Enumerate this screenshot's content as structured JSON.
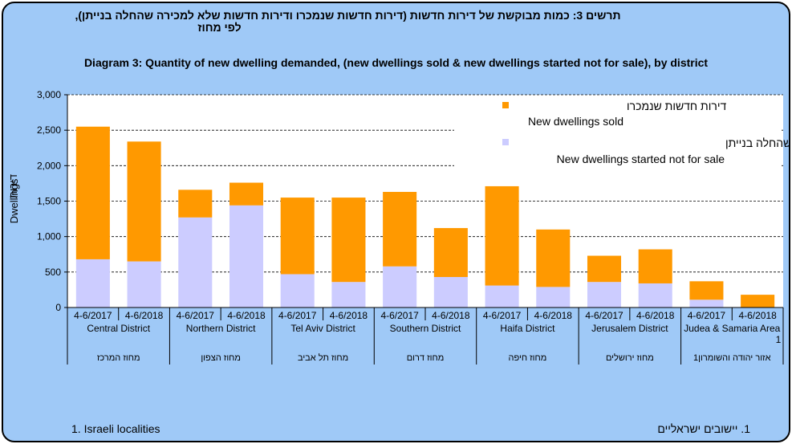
{
  "title_he_line1": "תרשים 3: כמות מבוקשת של דירות חדשות (דירות חדשות שנמכרו ודירות חדשות שלא למכירה שהחלה בנייתן),",
  "title_he_line2": "לפי מחוז",
  "title_en": "Diagram 3: Quantity of new dwelling demanded, (new dwellings sold & new dwellings started not for sale), by district",
  "footnote_en": "1. Israeli localities",
  "footnote_he": "1. יישובים ישראליים",
  "colors": {
    "sold": "#ff9900",
    "not_for_sale": "#ccccff",
    "background": "#9fc9f7"
  },
  "chart_data": {
    "type": "bar",
    "stacked": true,
    "ylabel_en": "Dwellings",
    "ylabel_he": "דירות",
    "ylim": [
      0,
      3000
    ],
    "yticks": [
      0,
      500,
      1000,
      1500,
      2000,
      2500,
      3000
    ],
    "ytick_labels": [
      "0",
      "500",
      "1,000",
      "1,500",
      "2,000",
      "2,500",
      "3,000"
    ],
    "grid": true,
    "legend_position": "top-right",
    "districts": [
      {
        "en": "Central District",
        "he": "מחוז המרכז"
      },
      {
        "en": "Northern District",
        "he": "מחוז הצפון"
      },
      {
        "en": "Tel Aviv District",
        "he": "מחוז תל אביב"
      },
      {
        "en": "Southern District",
        "he": "מחוז דרום"
      },
      {
        "en": "Haifa District",
        "he": "מחוז חיפה"
      },
      {
        "en": "Jerusalem District",
        "he": "מחוז ירושלים"
      },
      {
        "en": "Judea & Samaria Area",
        "en_note": "1",
        "he": "אזור יהודה והשומרון1"
      }
    ],
    "periods": [
      "4-6/2017",
      "4-6/2018"
    ],
    "series": [
      {
        "name_he": "דירות חדשות שלא למכירה שהחלה בנייתן",
        "name_en": "New dwellings started not for sale",
        "values": [
          680,
          650,
          1270,
          1440,
          470,
          360,
          580,
          430,
          310,
          290,
          360,
          340,
          110,
          0
        ]
      },
      {
        "name_he": "דירות חדשות שנמכרו",
        "name_en": "New dwellings sold",
        "values": [
          1870,
          1690,
          390,
          320,
          1080,
          1190,
          1050,
          690,
          1400,
          810,
          370,
          480,
          260,
          180
        ]
      }
    ]
  }
}
